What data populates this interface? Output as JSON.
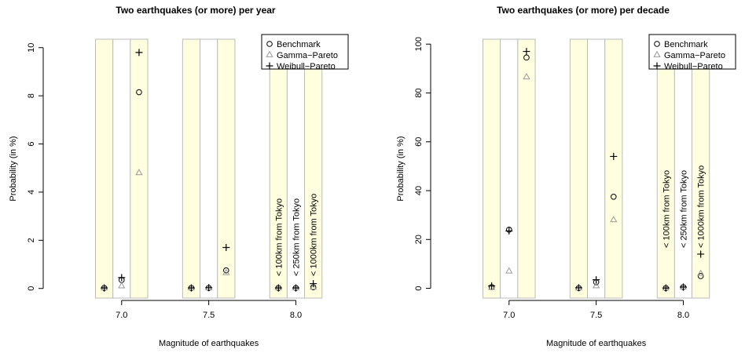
{
  "chart_data": [
    {
      "type": "scatter",
      "title": "Two earthquakes (or more) per year",
      "xlabel": "Magnitude of earthquakes",
      "ylabel": "Probability (in %)",
      "x": [
        6.9,
        7.0,
        7.1,
        7.4,
        7.5,
        7.6,
        7.9,
        8.0,
        8.1
      ],
      "xlim": [
        6.55,
        8.3
      ],
      "ylim": [
        -0.4,
        10.35
      ],
      "xticks": [
        {
          "value": 7.0,
          "label": "7.0"
        },
        7.5,
        {
          "value": 8.0,
          "label": "8.0"
        }
      ],
      "yticks": [
        0,
        2,
        4,
        6,
        8,
        10
      ],
      "band_colors": [
        "#ffffe0",
        "#ffffff",
        "#ffffe0"
      ],
      "legend": "topright",
      "annotations": [
        "< 100km from Tokyo",
        "< 250km from Tokyo",
        "< 1000km from Tokyo"
      ],
      "series": [
        {
          "name": "Benchmark",
          "color": "#000000",
          "marker": "circle",
          "values": [
            0.02,
            0.35,
            8.15,
            0.02,
            0.02,
            0.75,
            0.02,
            0.02,
            0.05
          ]
        },
        {
          "name": "Gamma−Pareto",
          "color": "#999999",
          "marker": "triangle",
          "values": [
            0.02,
            0.1,
            4.8,
            0.02,
            0.02,
            0.65,
            0.02,
            0.02,
            0.05
          ]
        },
        {
          "name": "Weibull−Pareto",
          "color": "#000000",
          "marker": "plus",
          "values": [
            0.02,
            0.45,
            9.8,
            0.02,
            0.03,
            1.7,
            0.02,
            0.02,
            0.2
          ]
        }
      ]
    },
    {
      "type": "scatter",
      "title": "Two earthquakes (or more) per decade",
      "xlabel": "Magnitude of earthquakes",
      "ylabel": "Probability (in %)",
      "x": [
        6.9,
        7.0,
        7.1,
        7.4,
        7.5,
        7.6,
        7.9,
        8.0,
        8.1
      ],
      "xlim": [
        6.55,
        8.3
      ],
      "ylim": [
        -4,
        102
      ],
      "xticks": [
        {
          "value": 7.0,
          "label": "7.0"
        },
        7.5,
        {
          "value": 8.0,
          "label": "8.0"
        }
      ],
      "yticks": [
        0,
        20,
        40,
        60,
        80,
        100
      ],
      "band_colors": [
        "#ffffe0",
        "#ffffff",
        "#ffffe0"
      ],
      "legend": "topright",
      "annotations": [
        "< 100km from Tokyo",
        "< 250km from Tokyo",
        "< 1000km from Tokyo"
      ],
      "series": [
        {
          "name": "Benchmark",
          "color": "#000000",
          "marker": "circle",
          "values": [
            0.5,
            24,
            94.5,
            0.1,
            2.5,
            37.5,
            0.1,
            0.5,
            5
          ]
        },
        {
          "name": "Gamma−Pareto",
          "color": "#999999",
          "marker": "triangle",
          "values": [
            0.3,
            7,
            86.5,
            0.1,
            1,
            28,
            0.1,
            0.5,
            6
          ]
        },
        {
          "name": "Weibull−Pareto",
          "color": "#000000",
          "marker": "plus",
          "values": [
            1,
            23.5,
            97,
            0.2,
            3.5,
            54,
            0.1,
            0.5,
            14
          ]
        }
      ]
    }
  ]
}
